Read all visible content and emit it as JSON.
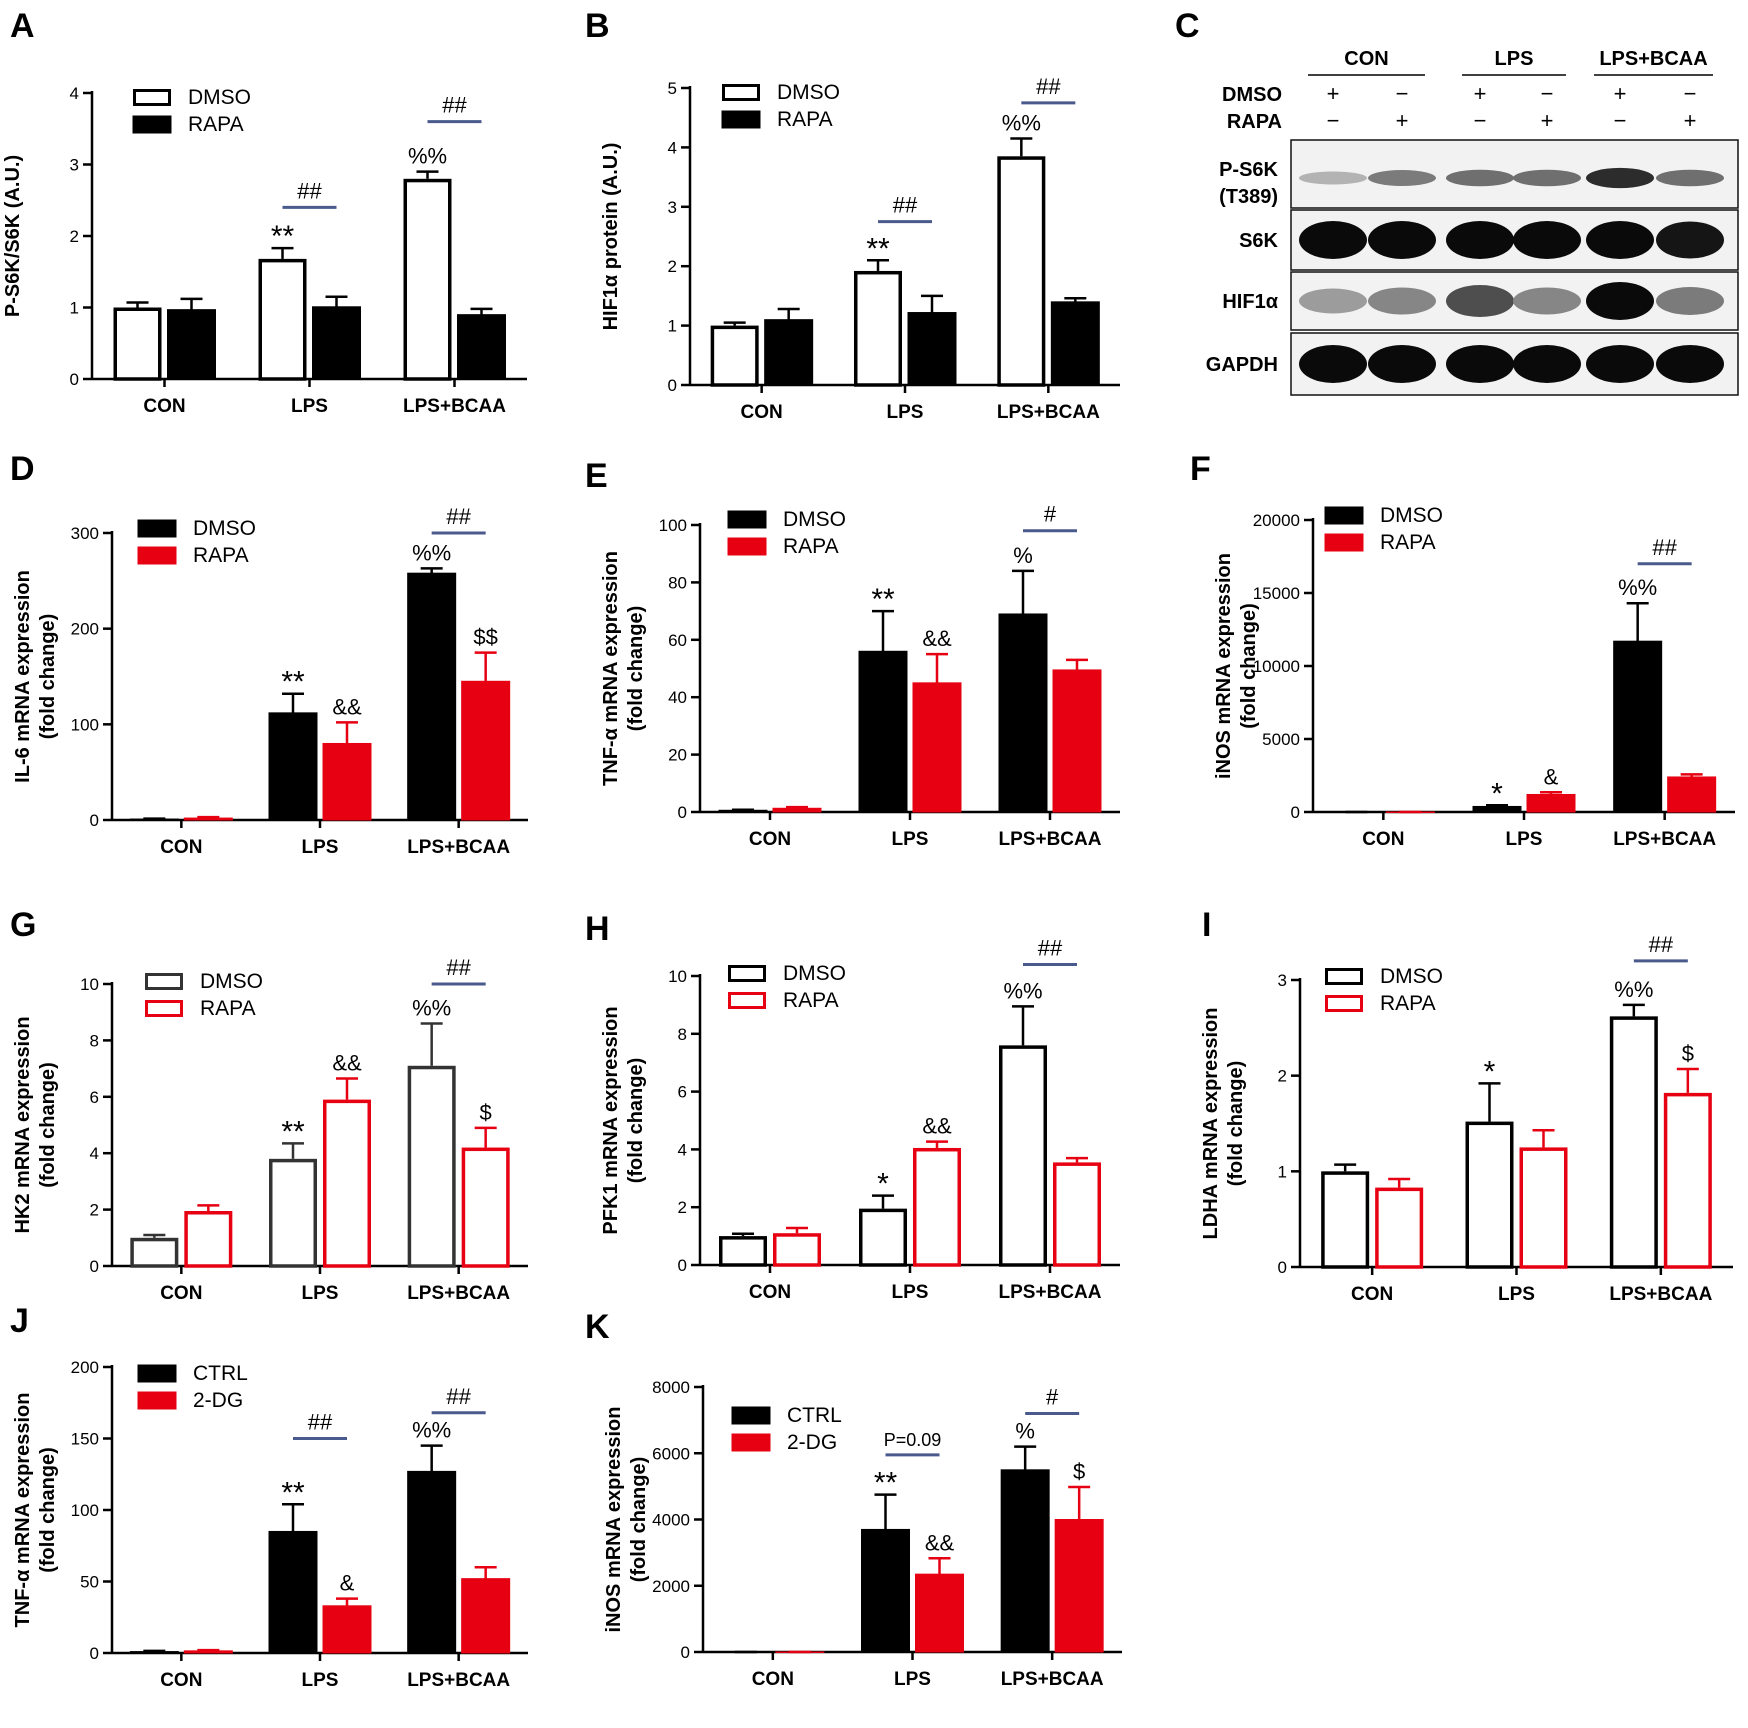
{
  "colors": {
    "black": "#000000",
    "red": "#E60012",
    "grey": "#333333",
    "line": "#4a5a8c"
  },
  "chart_data": [
    {
      "id": "A",
      "type": "bar",
      "panel": "A",
      "ylabel": "P-S6K/S6K (A.U.)",
      "ylim": [
        0,
        4
      ],
      "yticks": [
        "0",
        "1",
        "2",
        "3",
        "4"
      ],
      "categories": [
        "CON",
        "LPS",
        "LPS+BCAA"
      ],
      "series": [
        {
          "name": "DMSO",
          "style": "open-black",
          "values": [
            1.0,
            1.68,
            2.8
          ],
          "errors": [
            0.07,
            0.15,
            0.1
          ]
        },
        {
          "name": "RAPA",
          "style": "solid-black",
          "values": [
            0.97,
            1.01,
            0.9
          ],
          "errors": [
            0.15,
            0.14,
            0.08
          ]
        }
      ],
      "annotations": [
        {
          "text": "**",
          "group": 1,
          "series": 0
        },
        {
          "text": "%%",
          "group": 2,
          "series": 0
        }
      ],
      "comparisons": [
        {
          "text": "##",
          "group": 1,
          "y": 2.4
        },
        {
          "text": "##",
          "group": 2,
          "y": 3.6
        }
      ]
    },
    {
      "id": "B",
      "type": "bar",
      "panel": "B",
      "ylabel": "HIF1α protein (A.U.)",
      "ylim": [
        0,
        5
      ],
      "yticks": [
        "0",
        "1",
        "2",
        "3",
        "4",
        "5"
      ],
      "categories": [
        "CON",
        "LPS",
        "LPS+BCAA"
      ],
      "series": [
        {
          "name": "DMSO",
          "style": "open-black",
          "values": [
            1.0,
            1.92,
            3.85
          ],
          "errors": [
            0.05,
            0.18,
            0.3
          ]
        },
        {
          "name": "RAPA",
          "style": "solid-black",
          "values": [
            1.1,
            1.22,
            1.4
          ],
          "errors": [
            0.18,
            0.28,
            0.06
          ]
        }
      ],
      "annotations": [
        {
          "text": "**",
          "group": 1,
          "series": 0
        },
        {
          "text": "%%",
          "group": 2,
          "series": 0
        }
      ],
      "comparisons": [
        {
          "text": "##",
          "group": 1,
          "y": 2.75
        },
        {
          "text": "##",
          "group": 2,
          "y": 4.75
        }
      ]
    },
    {
      "id": "D",
      "type": "bar",
      "panel": "D",
      "ylabel": [
        "IL-6 mRNA expression",
        "(fold change)"
      ],
      "ylim": [
        0,
        300
      ],
      "yticks": [
        "0",
        "100",
        "200",
        "300"
      ],
      "categories": [
        "CON",
        "LPS",
        "LPS+BCAA"
      ],
      "series": [
        {
          "name": "DMSO",
          "style": "solid-black",
          "values": [
            1,
            112,
            258
          ],
          "errors": [
            0.5,
            20,
            5
          ]
        },
        {
          "name": "RAPA",
          "style": "solid-red",
          "values": [
            2,
            80,
            145
          ],
          "errors": [
            1,
            22,
            30
          ]
        }
      ],
      "annotations": [
        {
          "text": "**",
          "group": 1,
          "series": 0
        },
        {
          "text": "&&",
          "group": 1,
          "series": 1
        },
        {
          "text": "%%",
          "group": 2,
          "series": 0
        },
        {
          "text": "$$",
          "group": 2,
          "series": 1
        }
      ],
      "comparisons": [
        {
          "text": "##",
          "group": 2,
          "y": 300
        }
      ]
    },
    {
      "id": "E",
      "type": "bar",
      "panel": "E",
      "ylabel": [
        "TNF-α mRNA expression",
        "(fold change)"
      ],
      "ylim": [
        0,
        100
      ],
      "yticks": [
        "0",
        "20",
        "40",
        "60",
        "80",
        "100"
      ],
      "categories": [
        "CON",
        "LPS",
        "LPS+BCAA"
      ],
      "series": [
        {
          "name": "DMSO",
          "style": "solid-black",
          "values": [
            0.6,
            56,
            69
          ],
          "errors": [
            0.2,
            14,
            15
          ]
        },
        {
          "name": "RAPA",
          "style": "solid-red",
          "values": [
            1.3,
            45,
            49.5
          ],
          "errors": [
            0.4,
            10,
            3.5
          ]
        }
      ],
      "annotations": [
        {
          "text": "**",
          "group": 1,
          "series": 0
        },
        {
          "text": "&&",
          "group": 1,
          "series": 1
        },
        {
          "text": "%",
          "group": 2,
          "series": 0
        }
      ],
      "comparisons": [
        {
          "text": "#",
          "group": 2,
          "y": 98
        }
      ]
    },
    {
      "id": "F",
      "type": "bar",
      "panel": "F",
      "ylabel": [
        "iNOS mRNA expression",
        "(fold change)"
      ],
      "ylim": [
        0,
        20000
      ],
      "yticks": [
        "0",
        "5000",
        "10000",
        "15000",
        "20000"
      ],
      "categories": [
        "CON",
        "LPS",
        "LPS+BCAA"
      ],
      "series": [
        {
          "name": "DMSO",
          "style": "solid-black",
          "values": [
            1,
            380,
            11700
          ],
          "errors": [
            0.5,
            80,
            2600
          ]
        },
        {
          "name": "RAPA",
          "style": "solid-red",
          "values": [
            1,
            1200,
            2400
          ],
          "errors": [
            0.5,
            150,
            180
          ]
        }
      ],
      "annotations": [
        {
          "text": "*",
          "group": 1,
          "series": 0
        },
        {
          "text": "&",
          "group": 1,
          "series": 1
        },
        {
          "text": "%%",
          "group": 2,
          "series": 0
        }
      ],
      "comparisons": [
        {
          "text": "##",
          "group": 2,
          "y": 17000
        }
      ]
    },
    {
      "id": "G",
      "type": "bar",
      "panel": "G",
      "ylabel": [
        "HK2 mRNA expression",
        "(fold change)"
      ],
      "ylim": [
        0,
        10
      ],
      "yticks": [
        "0",
        "2",
        "4",
        "6",
        "8",
        "10"
      ],
      "categories": [
        "CON",
        "LPS",
        "LPS+BCAA"
      ],
      "series": [
        {
          "name": "DMSO",
          "style": "open-grey",
          "values": [
            1.0,
            3.8,
            7.1
          ],
          "errors": [
            0.1,
            0.55,
            1.5
          ]
        },
        {
          "name": "RAPA",
          "style": "open-red",
          "values": [
            1.95,
            5.9,
            4.2
          ],
          "errors": [
            0.2,
            0.75,
            0.7
          ]
        }
      ],
      "annotations": [
        {
          "text": "**",
          "group": 1,
          "series": 0
        },
        {
          "text": "&&",
          "group": 1,
          "series": 1
        },
        {
          "text": "%%",
          "group": 2,
          "series": 0
        },
        {
          "text": "$",
          "group": 2,
          "series": 1
        }
      ],
      "comparisons": [
        {
          "text": "##",
          "group": 2,
          "y": 10.0
        }
      ]
    },
    {
      "id": "H",
      "type": "bar",
      "panel": "H",
      "ylabel": [
        "PFK1 mRNA expression",
        "(fold change)"
      ],
      "ylim": [
        0,
        10
      ],
      "yticks": [
        "0",
        "2",
        "4",
        "6",
        "8",
        "10"
      ],
      "categories": [
        "CON",
        "LPS",
        "LPS+BCAA"
      ],
      "series": [
        {
          "name": "DMSO",
          "style": "open-black",
          "values": [
            1.0,
            1.95,
            7.6
          ],
          "errors": [
            0.08,
            0.45,
            1.35
          ]
        },
        {
          "name": "RAPA",
          "style": "open-red",
          "values": [
            1.1,
            4.05,
            3.55
          ],
          "errors": [
            0.18,
            0.22,
            0.15
          ]
        }
      ],
      "annotations": [
        {
          "text": "*",
          "group": 1,
          "series": 0
        },
        {
          "text": "&&",
          "group": 1,
          "series": 1
        },
        {
          "text": "%%",
          "group": 2,
          "series": 0
        }
      ],
      "comparisons": [
        {
          "text": "##",
          "group": 2,
          "y": 10.4
        }
      ]
    },
    {
      "id": "I",
      "type": "bar",
      "panel": "I",
      "ylabel": [
        "LDHA mRNA expression",
        "(fold change)"
      ],
      "ylim": [
        0,
        3
      ],
      "yticks": [
        "0",
        "1",
        "2",
        "3"
      ],
      "categories": [
        "CON",
        "LPS",
        "LPS+BCAA"
      ],
      "series": [
        {
          "name": "DMSO",
          "style": "open-black",
          "values": [
            1.0,
            1.52,
            2.62
          ],
          "errors": [
            0.07,
            0.4,
            0.12
          ]
        },
        {
          "name": "RAPA",
          "style": "open-red",
          "values": [
            0.83,
            1.25,
            1.82
          ],
          "errors": [
            0.09,
            0.18,
            0.25
          ]
        }
      ],
      "annotations": [
        {
          "text": "*",
          "group": 1,
          "series": 0
        },
        {
          "text": "%%",
          "group": 2,
          "series": 0
        },
        {
          "text": "$",
          "group": 2,
          "series": 1
        }
      ],
      "comparisons": [
        {
          "text": "##",
          "group": 2,
          "y": 3.2
        }
      ]
    },
    {
      "id": "J",
      "type": "bar",
      "panel": "J",
      "ylabel": [
        "TNF-α mRNA expression",
        "(fold change)"
      ],
      "ylim": [
        0,
        200
      ],
      "yticks": [
        "0",
        "50",
        "100",
        "150",
        "200"
      ],
      "categories": [
        "CON",
        "LPS",
        "LPS+BCAA"
      ],
      "series": [
        {
          "name": "CTRL",
          "style": "solid-black",
          "values": [
            1,
            85,
            127
          ],
          "errors": [
            0.5,
            19,
            18
          ]
        },
        {
          "name": "2-DG",
          "style": "solid-red",
          "values": [
            1.5,
            33,
            52
          ],
          "errors": [
            0.5,
            5,
            8
          ]
        }
      ],
      "annotations": [
        {
          "text": "**",
          "group": 1,
          "series": 0
        },
        {
          "text": "&",
          "group": 1,
          "series": 1
        },
        {
          "text": "%%",
          "group": 2,
          "series": 0
        }
      ],
      "comparisons": [
        {
          "text": "##",
          "group": 1,
          "y": 150
        },
        {
          "text": "##",
          "group": 2,
          "y": 168
        }
      ]
    },
    {
      "id": "K",
      "type": "bar",
      "panel": "K",
      "ylabel": [
        "iNOS mRNA expression",
        "(fold change)"
      ],
      "ylim": [
        0,
        8000
      ],
      "yticks": [
        "0",
        "2000",
        "4000",
        "6000",
        "8000"
      ],
      "categories": [
        "CON",
        "LPS",
        "LPS+BCAA"
      ],
      "series": [
        {
          "name": "CTRL",
          "style": "solid-black",
          "values": [
            1,
            3700,
            5500
          ],
          "errors": [
            0.5,
            1050,
            700
          ]
        },
        {
          "name": "2-DG",
          "style": "solid-red",
          "values": [
            1,
            2350,
            4000
          ],
          "errors": [
            0.5,
            480,
            980
          ]
        }
      ],
      "annotations": [
        {
          "text": "**",
          "group": 1,
          "series": 0
        },
        {
          "text": "&&",
          "group": 1,
          "series": 1
        },
        {
          "text": "%",
          "group": 2,
          "series": 0
        },
        {
          "text": "$",
          "group": 2,
          "series": 1
        }
      ],
      "comparisons": [
        {
          "text": "P=0.09",
          "group": 1,
          "y": 5950
        },
        {
          "text": "#",
          "group": 2,
          "y": 7200
        }
      ]
    }
  ],
  "blot": {
    "panel": "C",
    "groups": [
      "CON",
      "LPS",
      "LPS+BCAA"
    ],
    "treatment_rows": [
      {
        "label": "DMSO",
        "signs": [
          "+",
          "−",
          "+",
          "−",
          "+",
          "−"
        ]
      },
      {
        "label": "RAPA",
        "signs": [
          "−",
          "+",
          "−",
          "+",
          "−",
          "+"
        ]
      }
    ],
    "rows": [
      {
        "label": "P-S6K",
        "sublabel": "(T389)",
        "intensity": [
          0.25,
          0.5,
          0.55,
          0.55,
          0.85,
          0.55
        ]
      },
      {
        "label": "S6K",
        "sublabel": "",
        "intensity": [
          1,
          1,
          1,
          1,
          1,
          0.95
        ]
      },
      {
        "label": "HIF1α",
        "sublabel": "",
        "intensity": [
          0.35,
          0.45,
          0.7,
          0.45,
          1,
          0.5
        ]
      },
      {
        "label": "GAPDH",
        "sublabel": "",
        "intensity": [
          1,
          1,
          1,
          1,
          1,
          1
        ]
      }
    ]
  }
}
